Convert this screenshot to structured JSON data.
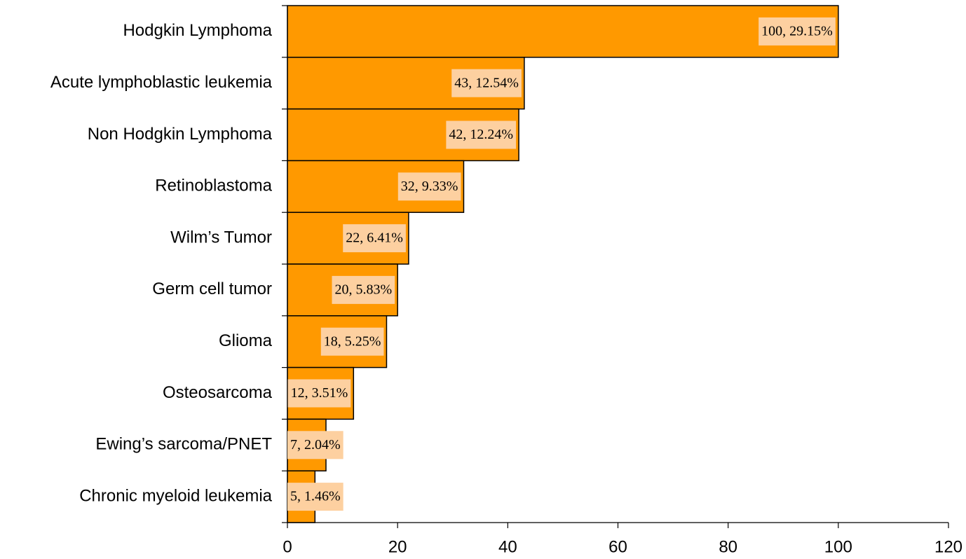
{
  "chart_data": {
    "type": "bar",
    "orientation": "horizontal",
    "categories": [
      "Hodgkin Lymphoma",
      "Acute lymphoblastic leukemia",
      "Non Hodgkin Lymphoma",
      "Retinoblastoma",
      "Wilm’s Tumor",
      "Germ cell tumor",
      "Glioma",
      "Osteosarcoma",
      "Ewing’s sarcoma/PNET",
      "Chronic myeloid leukemia"
    ],
    "values": [
      100,
      43,
      42,
      32,
      22,
      20,
      18,
      12,
      7,
      5
    ],
    "value_labels": [
      "100, 29.15%",
      "43, 12.54%",
      "42, 12.24%",
      "32, 9.33%",
      "22, 6.41%",
      "20, 5.83%",
      "18, 5.25%",
      "12, 3.51%",
      "7, 2.04%",
      "5, 1.46%"
    ],
    "color": "#ff9900",
    "xlim": [
      0,
      120
    ],
    "xticks": [
      0,
      20,
      40,
      60,
      80,
      100,
      120
    ],
    "grid": false
  }
}
